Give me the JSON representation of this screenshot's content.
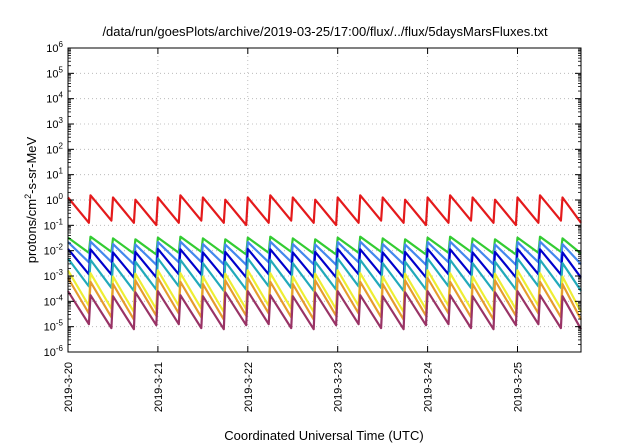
{
  "chart_data": {
    "type": "line",
    "title": "/data/run/goesPlots/archive/2019-03-25/17:00/flux/../flux/5daysMarsFluxes.txt",
    "xlabel": "Coordinated Universal Time (UTC)",
    "ylabel": "protons/cm2-s-sr-MeV",
    "yscale": "log",
    "ylim": [
      -6,
      6
    ],
    "xlim": [
      "2019-03-20",
      "2019-03-25 17:00"
    ],
    "x_ticks": [
      "2019-3-20",
      "2019-3-21",
      "2019-3-22",
      "2019-3-23",
      "2019-3-24",
      "2019-3-25"
    ],
    "y_ticks": [
      -6,
      -5,
      -4,
      -3,
      -2,
      -1,
      0,
      1,
      2,
      3,
      4,
      5,
      6
    ],
    "grid": true,
    "legend": "none",
    "sawtooth_period_hours": 6,
    "series": [
      {
        "color": "#e41a1c",
        "min_log": -0.9,
        "max_log": 0.1
      },
      {
        "color": "#33cc33",
        "min_log": -2.1,
        "max_log": -1.5
      },
      {
        "color": "#4488ee",
        "min_log": -2.5,
        "max_log": -1.7
      },
      {
        "color": "#0000cc",
        "min_log": -3.0,
        "max_log": -2.0
      },
      {
        "color": "#22aabb",
        "min_log": -3.5,
        "max_log": -2.4
      },
      {
        "color": "#eeee33",
        "min_log": -4.3,
        "max_log": -2.9
      },
      {
        "color": "#e69b2e",
        "min_log": -4.6,
        "max_log": -3.2
      },
      {
        "color": "#993366",
        "min_log": -5.0,
        "max_log": -3.7
      }
    ]
  }
}
